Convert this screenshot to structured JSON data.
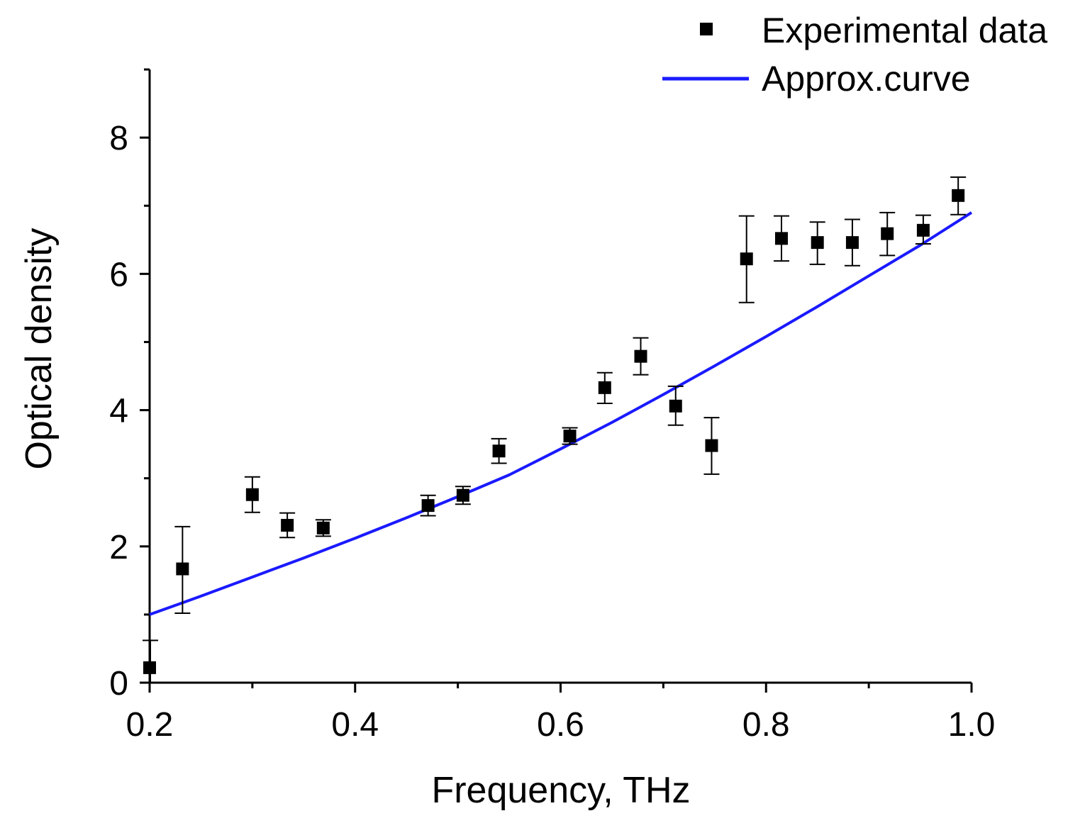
{
  "chart_data": {
    "type": "scatter",
    "title": "",
    "xlabel": "Frequency, THz",
    "ylabel": "Optical density",
    "xlim": [
      0.2,
      1.0
    ],
    "ylim": [
      0,
      9
    ],
    "x_major_ticks": [
      0.2,
      0.4,
      0.6,
      0.8,
      1.0
    ],
    "x_tick_labels": [
      "0.2",
      "0.4",
      "0.6",
      "0.8",
      "1.0"
    ],
    "x_minor_ticks": [
      0.3,
      0.5,
      0.7,
      0.9
    ],
    "y_major_ticks": [
      0,
      2,
      4,
      6,
      8
    ],
    "y_tick_labels": [
      "0",
      "2",
      "4",
      "6",
      "8"
    ],
    "y_minor_ticks": [
      1,
      3,
      5,
      7,
      9
    ],
    "grid": false,
    "legend_position": "top-right",
    "series": [
      {
        "name": "Experimental data",
        "kind": "scatter",
        "marker": "square",
        "color": "#000000",
        "x": [
          0.2,
          0.232,
          0.3,
          0.334,
          0.369,
          0.471,
          0.505,
          0.54,
          0.609,
          0.643,
          0.678,
          0.712,
          0.747,
          0.781,
          0.815,
          0.85,
          0.884,
          0.918,
          0.953,
          0.987
        ],
        "y": [
          0.22,
          1.67,
          2.76,
          2.31,
          2.27,
          2.6,
          2.75,
          3.4,
          3.62,
          4.33,
          4.79,
          4.06,
          3.48,
          6.22,
          6.52,
          6.46,
          6.46,
          6.59,
          6.64,
          7.15
        ],
        "err_low": [
          0.4,
          0.65,
          0.26,
          0.18,
          0.12,
          0.15,
          0.13,
          0.18,
          0.12,
          0.23,
          0.27,
          0.28,
          0.42,
          0.64,
          0.33,
          0.32,
          0.34,
          0.32,
          0.2,
          0.28
        ],
        "err_high": [
          0.4,
          0.62,
          0.26,
          0.18,
          0.12,
          0.15,
          0.13,
          0.18,
          0.12,
          0.22,
          0.27,
          0.29,
          0.41,
          0.63,
          0.33,
          0.3,
          0.34,
          0.31,
          0.22,
          0.27
        ]
      },
      {
        "name": "Approx.curve",
        "kind": "line",
        "color": "#1a1aff",
        "x": [
          0.2,
          0.25,
          0.3,
          0.35,
          0.4,
          0.45,
          0.5,
          0.55,
          0.6,
          0.65,
          0.7,
          0.75,
          0.8,
          0.85,
          0.9,
          0.95,
          1.0
        ],
        "y": [
          1.0,
          1.27,
          1.55,
          1.83,
          2.12,
          2.42,
          2.73,
          3.05,
          3.43,
          3.82,
          4.23,
          4.65,
          5.08,
          5.52,
          5.97,
          6.42,
          6.9
        ]
      }
    ]
  }
}
